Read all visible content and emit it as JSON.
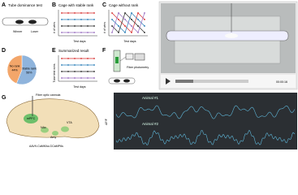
{
  "panels": {
    "A": {
      "letter": "A",
      "title": "Tube dominance test",
      "winner": "Winner",
      "loser": "Loser"
    },
    "B": {
      "letter": "B",
      "title": "Cage with stable rank",
      "ylabel": "# of wins",
      "xlabel": "Test days"
    },
    "C": {
      "letter": "C",
      "title": "Cage without rank",
      "ylabel": "# of wins",
      "xlabel": "Test days"
    },
    "D": {
      "letter": "D",
      "slices": [
        {
          "label": "Stable rank",
          "value": 56,
          "value_label": "56%",
          "color": "#8fb4dc"
        },
        {
          "label": "No rank",
          "value": 44,
          "value_label": "44%",
          "color": "#f3a66a"
        }
      ]
    },
    "E": {
      "letter": "E",
      "title": "Summarized result",
      "ylabel": "Tube test wins",
      "xlabel": "Test days"
    },
    "F": {
      "letter": "F",
      "device": "Fiber photometry"
    },
    "video": {
      "time": "00:00:16"
    },
    "G": {
      "letter": "G",
      "cannula": "Fiber optic cannula",
      "regions": [
        "mPFC",
        "NAc",
        "VTA",
        "Amy"
      ],
      "virus": "AAV9-CaMKIIa-GCaMP6s",
      "ylabel": "ΔF/F",
      "traces": [
        "Animal #1",
        "Animal #2"
      ]
    }
  }
}
